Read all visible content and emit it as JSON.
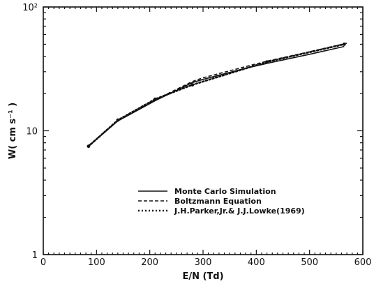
{
  "chart_data": {
    "type": "line",
    "xlabel": "E/N (Td)",
    "ylabel": "W( cm s⁻¹ )",
    "x_scale": "linear",
    "y_scale": "log",
    "xlim": [
      0,
      600
    ],
    "ylim": [
      1,
      100
    ],
    "x_ticks": [
      0,
      100,
      200,
      300,
      400,
      500,
      600
    ],
    "y_ticks": [
      {
        "value": 1,
        "label": "1"
      },
      {
        "value": 10,
        "label": "10"
      },
      {
        "value": 100,
        "label": "10²"
      }
    ],
    "legend_position": "lower-center",
    "series": [
      {
        "name": "Monte Carlo Simulation",
        "style": "solid",
        "x": [
          85,
          140,
          210,
          280,
          300,
          380,
          420,
          500,
          565
        ],
        "y": [
          7.5,
          12.0,
          17.5,
          24.5,
          26.0,
          32.0,
          35.0,
          41.5,
          48.0
        ]
      },
      {
        "name": "Boltzmann Equation",
        "style": "dashed",
        "x": [
          85,
          140,
          210,
          280,
          300,
          380,
          420,
          500,
          570
        ],
        "y": [
          7.6,
          12.1,
          17.8,
          25.0,
          26.8,
          33.0,
          36.5,
          43.5,
          51.0
        ]
      },
      {
        "name": "J.H.Parker,Jr.& J.J.Lowke(1969)",
        "style": "dotted",
        "x": [
          85,
          140,
          210,
          280,
          420,
          565
        ],
        "y": [
          7.5,
          12.2,
          18.0,
          23.5,
          36.0,
          50.0
        ]
      }
    ]
  }
}
